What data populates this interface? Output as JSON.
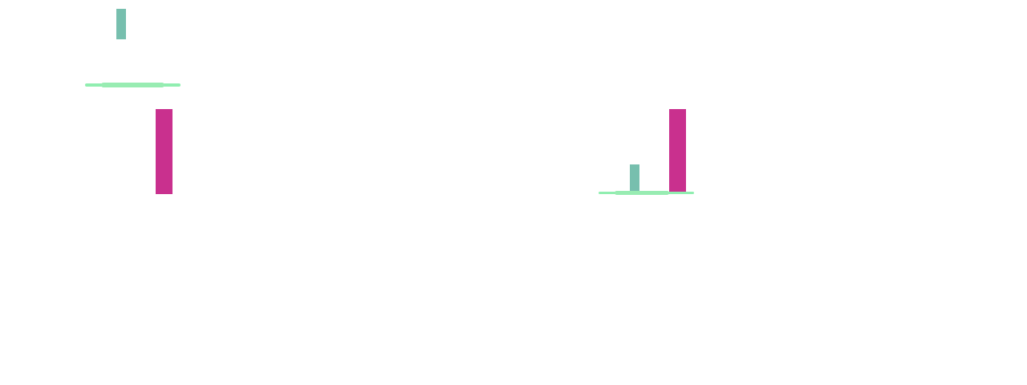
{
  "colors": {
    "background": "#ffffff",
    "teal": "#77bfae",
    "magenta": "#c9308e",
    "green_light": "#90eeb0",
    "green_mid": "#98ecb2"
  },
  "groups": [
    {
      "name": "group-left",
      "elements": [
        "teal-bar",
        "green-line",
        "magenta-bar"
      ]
    },
    {
      "name": "group-right",
      "elements": [
        "teal-bar",
        "green-line",
        "magenta-bar"
      ]
    }
  ]
}
